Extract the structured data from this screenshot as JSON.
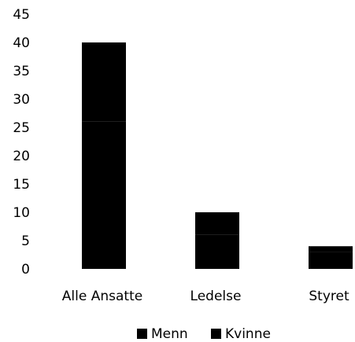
{
  "chart_data": {
    "type": "bar",
    "title": "",
    "xlabel": "",
    "ylabel": "",
    "categories": [
      "Alle Ansatte",
      "Ledelse",
      "Styret"
    ],
    "series": [
      {
        "name": "Menn",
        "values": [
          26,
          6,
          3
        ],
        "color": "#000000"
      },
      {
        "name": "Kvinne",
        "values": [
          14,
          4,
          1
        ],
        "color": "#000000"
      }
    ],
    "stacked": true,
    "ylim": [
      0,
      45
    ],
    "yticks": [
      0,
      5,
      10,
      15,
      20,
      25,
      30,
      35,
      40,
      45
    ],
    "grid": false,
    "legend_position": "bottom"
  }
}
